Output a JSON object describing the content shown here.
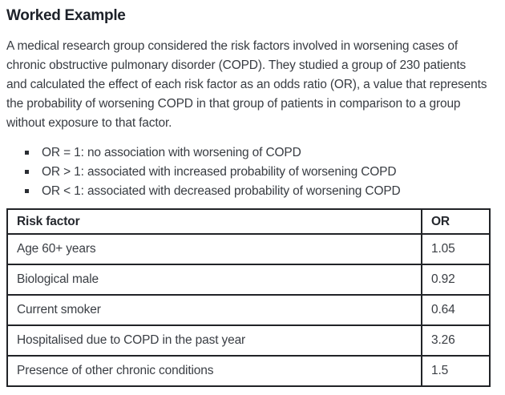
{
  "heading": "Worked Example",
  "paragraph": "A medical research group considered the risk factors involved in worsening cases of chronic obstructive pulmonary disorder (COPD). They studied a group of 230 patients and calculated the effect of each risk factor as an odds ratio (OR), a value that represents the probability of worsening COPD in that group of patients in comparison to a group without exposure to that factor.",
  "bullets": [
    "OR = 1: no association with worsening of COPD",
    "OR > 1: associated with increased probability of worsening COPD",
    "OR < 1: associated with decreased probability of worsening COPD"
  ],
  "table": {
    "headers": {
      "risk_factor": "Risk factor",
      "or": "OR"
    },
    "rows": [
      {
        "risk_factor": "Age 60+ years",
        "or": "1.05"
      },
      {
        "risk_factor": "Biological male",
        "or": "0.92"
      },
      {
        "risk_factor": "Current smoker",
        "or": "0.64"
      },
      {
        "risk_factor": "Hospitalised due to COPD in the past year",
        "or": "3.26"
      },
      {
        "risk_factor": "Presence of other chronic conditions",
        "or": "1.5"
      }
    ]
  },
  "colors": {
    "heading_text": "#1d2129",
    "body_text": "#383c42",
    "table_border": "#212327",
    "background": "#ffffff"
  }
}
